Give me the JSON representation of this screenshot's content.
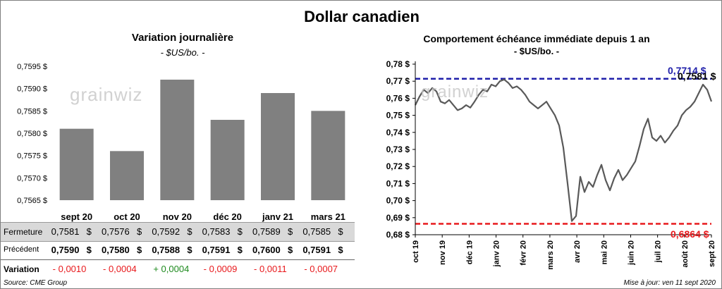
{
  "header": {
    "title": "Dollar canadien"
  },
  "left_chart": {
    "title": "Variation  journalière",
    "subtitle": "- $US/bo. -",
    "watermark": "grainwiz"
  },
  "right_chart": {
    "title": "Comportement échéance immédiate depuis 1 an",
    "subtitle": "- $US/bo. -",
    "watermark": "grainwiz",
    "high_label": "0,7714 $",
    "low_label": "0,6864 $",
    "last_label": "0,7581 $"
  },
  "table": {
    "rows": [
      {
        "label": "Fermeture",
        "values": [
          "0,7581",
          "0,7576",
          "0,7592",
          "0,7583",
          "0,7589",
          "0,7585"
        ],
        "unit": "$"
      },
      {
        "label": "Précédent",
        "values": [
          "0,7590",
          "0,7580",
          "0,7588",
          "0,7591",
          "0,7600",
          "0,7591"
        ],
        "unit": "$"
      },
      {
        "label": "Variation",
        "values": [
          "- 0,0010",
          "- 0,0004",
          "+ 0,0004",
          "- 0,0009",
          "- 0,0011",
          "- 0,0007"
        ]
      }
    ]
  },
  "footer": {
    "source": "Source: CME Group",
    "updated": "Mise à jour: ven 11 sept 2020"
  },
  "colors": {
    "bar": "#808080",
    "line": "#595959",
    "high": "#1f1faa",
    "low": "#e8191c",
    "positive": "#1e8a1e",
    "negative": "#e8191c",
    "table_band": "#d9d9d9"
  },
  "chart_data": [
    {
      "type": "bar",
      "categories": [
        "sept 20",
        "oct 20",
        "nov 20",
        "déc 20",
        "janv 21",
        "mars 21"
      ],
      "values": [
        0.7581,
        0.7576,
        0.7592,
        0.7583,
        0.7589,
        0.7585
      ],
      "ylim": [
        0.7565,
        0.7595
      ],
      "yticks": [
        "0,7565 $",
        "0,7570 $",
        "0,7575 $",
        "0,7580 $",
        "0,7585 $",
        "0,7590 $",
        "0,7595 $"
      ],
      "title": "Variation  journalière",
      "ylabel": "",
      "grid": false
    },
    {
      "type": "line",
      "ylim": [
        0.68,
        0.78
      ],
      "yticks": [
        "0,68 $",
        "0,69 $",
        "0,70 $",
        "0,71 $",
        "0,72 $",
        "0,73 $",
        "0,74 $",
        "0,75 $",
        "0,76 $",
        "0,77 $",
        "0,78 $"
      ],
      "xticks": [
        "oct 19",
        "nov 19",
        "déc 19",
        "janv 20",
        "févr 20",
        "mars 20",
        "avr 20",
        "mai 20",
        "juin 20",
        "juil 20",
        "août 20",
        "sept 20"
      ],
      "title": "Comportement échéance immédiate depuis 1 an",
      "reference_lines": [
        {
          "value": 0.7714,
          "label": "0,7714 $"
        },
        {
          "value": 0.6864,
          "label": "0,6864 $"
        }
      ],
      "last_value": 0.7581,
      "grid": false,
      "series": [
        {
          "values": [
            0.756,
            0.761,
            0.765,
            0.763,
            0.766,
            0.764,
            0.758,
            0.757,
            0.759,
            0.756,
            0.753,
            0.754,
            0.756,
            0.7545,
            0.758,
            0.762,
            0.765,
            0.764,
            0.768,
            0.767,
            0.77,
            0.771,
            0.769,
            0.766,
            0.767,
            0.765,
            0.762,
            0.758,
            0.756,
            0.754,
            0.756,
            0.758,
            0.754,
            0.75,
            0.744,
            0.731,
            0.71,
            0.688,
            0.691,
            0.714,
            0.705,
            0.711,
            0.708,
            0.715,
            0.721,
            0.712,
            0.706,
            0.713,
            0.718,
            0.712,
            0.715,
            0.719,
            0.723,
            0.732,
            0.742,
            0.748,
            0.737,
            0.735,
            0.738,
            0.734,
            0.737,
            0.741,
            0.744,
            0.75,
            0.753,
            0.755,
            0.758,
            0.763,
            0.768,
            0.765,
            0.7581
          ]
        }
      ]
    }
  ]
}
